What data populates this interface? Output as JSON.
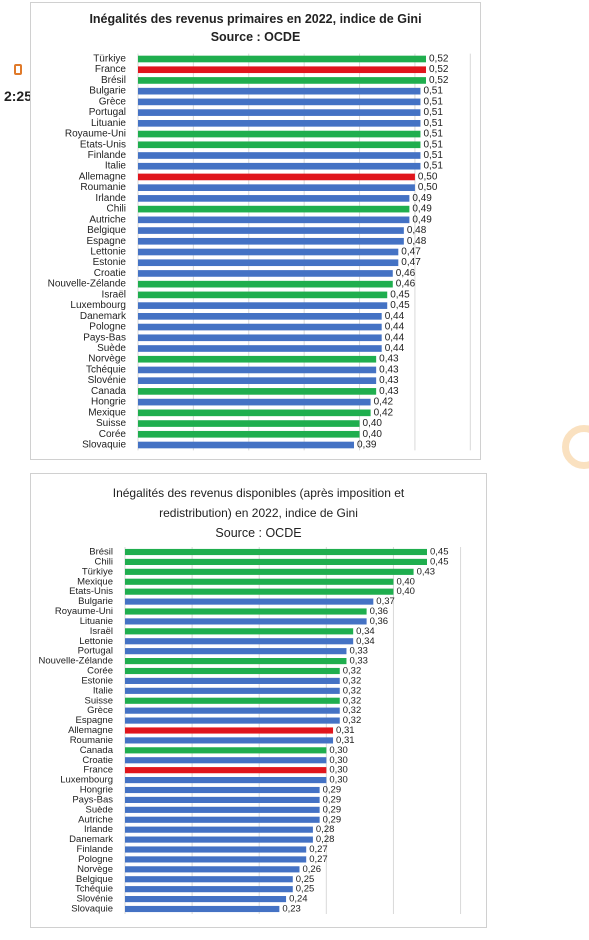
{
  "status": {
    "time": "2:25",
    "phone_icon": "phone-icon"
  },
  "colors": {
    "blue": "#4472c4",
    "green": "#1fae4e",
    "red": "#e0151c",
    "grid": "#d9d9d9"
  },
  "chart_data": [
    {
      "type": "bar",
      "orientation": "horizontal",
      "title": "Inégalités des revenus primaires en 2022, indice de Gini",
      "subtitle": "Source : OCDE",
      "xlim": [
        0,
        0.6
      ],
      "grid": true,
      "categories": [
        "Türkiye",
        "France",
        "Brésil",
        "Bulgarie",
        "Grèce",
        "Portugal",
        "Lituanie",
        "Royaume-Uni",
        "Etats-Unis",
        "Finlande",
        "Italie",
        "Allemagne",
        "Roumanie",
        "Irlande",
        "Chili",
        "Autriche",
        "Belgique",
        "Espagne",
        "Lettonie",
        "Estonie",
        "Croatie",
        "Nouvelle-Zélande",
        "Israël",
        "Luxembourg",
        "Danemark",
        "Pologne",
        "Pays-Bas",
        "Suède",
        "Norvège",
        "Tchéquie",
        "Slovénie",
        "Canada",
        "Hongrie",
        "Mexique",
        "Suisse",
        "Corée",
        "Slovaquie"
      ],
      "values": [
        0.52,
        0.52,
        0.52,
        0.51,
        0.51,
        0.51,
        0.51,
        0.51,
        0.51,
        0.51,
        0.51,
        0.5,
        0.5,
        0.49,
        0.49,
        0.49,
        0.48,
        0.48,
        0.47,
        0.47,
        0.46,
        0.46,
        0.45,
        0.45,
        0.44,
        0.44,
        0.44,
        0.44,
        0.43,
        0.43,
        0.43,
        0.43,
        0.42,
        0.42,
        0.4,
        0.4,
        0.39
      ],
      "labels": [
        "0,52",
        "0,52",
        "0,52",
        "0,51",
        "0,51",
        "0,51",
        "0,51",
        "0,51",
        "0,51",
        "0,51",
        "0,51",
        "0,50",
        "0,50",
        "0,49",
        "0,49",
        "0,49",
        "0,48",
        "0,48",
        "0,47",
        "0,47",
        "0,46",
        "0,46",
        "0,45",
        "0,45",
        "0,44",
        "0,44",
        "0,44",
        "0,44",
        "0,43",
        "0,43",
        "0,43",
        "0,43",
        "0,42",
        "0,42",
        "0,40",
        "0,40",
        "0,39"
      ],
      "bar_colors": [
        "green",
        "red",
        "green",
        "blue",
        "blue",
        "blue",
        "blue",
        "green",
        "green",
        "blue",
        "blue",
        "red",
        "blue",
        "blue",
        "green",
        "blue",
        "blue",
        "blue",
        "blue",
        "blue",
        "blue",
        "green",
        "green",
        "blue",
        "blue",
        "blue",
        "blue",
        "blue",
        "green",
        "blue",
        "blue",
        "green",
        "blue",
        "green",
        "green",
        "green",
        "blue"
      ]
    },
    {
      "type": "bar",
      "orientation": "horizontal",
      "title": "Inégalités des revenus disponibles (après imposition et redistribution) en 2022, indice de Gini",
      "title_line1": "Inégalités des revenus disponibles (après imposition et",
      "title_line2": "redistribution) en 2022, indice de Gini",
      "subtitle": "Source : OCDE",
      "xlim": [
        0,
        0.5
      ],
      "grid": true,
      "categories": [
        "Brésil",
        "Chili",
        "Türkiye",
        "Mexique",
        "Etats-Unis",
        "Bulgarie",
        "Royaume-Uni",
        "Lituanie",
        "Israël",
        "Lettonie",
        "Portugal",
        "Nouvelle-Zélande",
        "Corée",
        "Estonie",
        "Italie",
        "Suisse",
        "Grèce",
        "Espagne",
        "Allemagne",
        "Roumanie",
        "Canada",
        "Croatie",
        "France",
        "Luxembourg",
        "Hongrie",
        "Pays-Bas",
        "Suède",
        "Autriche",
        "Irlande",
        "Danemark",
        "Finlande",
        "Pologne",
        "Norvège",
        "Belgique",
        "Tchéquie",
        "Slovénie",
        "Slovaquie"
      ],
      "values": [
        0.45,
        0.45,
        0.43,
        0.4,
        0.4,
        0.37,
        0.36,
        0.36,
        0.34,
        0.34,
        0.33,
        0.33,
        0.32,
        0.32,
        0.32,
        0.32,
        0.32,
        0.32,
        0.31,
        0.31,
        0.3,
        0.3,
        0.3,
        0.3,
        0.29,
        0.29,
        0.29,
        0.29,
        0.28,
        0.28,
        0.27,
        0.27,
        0.26,
        0.25,
        0.25,
        0.24,
        0.23
      ],
      "labels": [
        "0,45",
        "0,45",
        "0,43",
        "0,40",
        "0,40",
        "0,37",
        "0,36",
        "0,36",
        "0,34",
        "0,34",
        "0,33",
        "0,33",
        "0,32",
        "0,32",
        "0,32",
        "0,32",
        "0,32",
        "0,32",
        "0,31",
        "0,31",
        "0,30",
        "0,30",
        "0,30",
        "0,30",
        "0,29",
        "0,29",
        "0,29",
        "0,29",
        "0,28",
        "0,28",
        "0,27",
        "0,27",
        "0,26",
        "0,25",
        "0,25",
        "0,24",
        "0,23"
      ],
      "bar_colors": [
        "green",
        "green",
        "green",
        "green",
        "green",
        "blue",
        "green",
        "blue",
        "green",
        "blue",
        "blue",
        "green",
        "green",
        "blue",
        "blue",
        "green",
        "blue",
        "blue",
        "red",
        "blue",
        "green",
        "blue",
        "red",
        "blue",
        "blue",
        "blue",
        "blue",
        "blue",
        "blue",
        "blue",
        "blue",
        "blue",
        "blue",
        "blue",
        "blue",
        "blue",
        "blue"
      ]
    }
  ]
}
